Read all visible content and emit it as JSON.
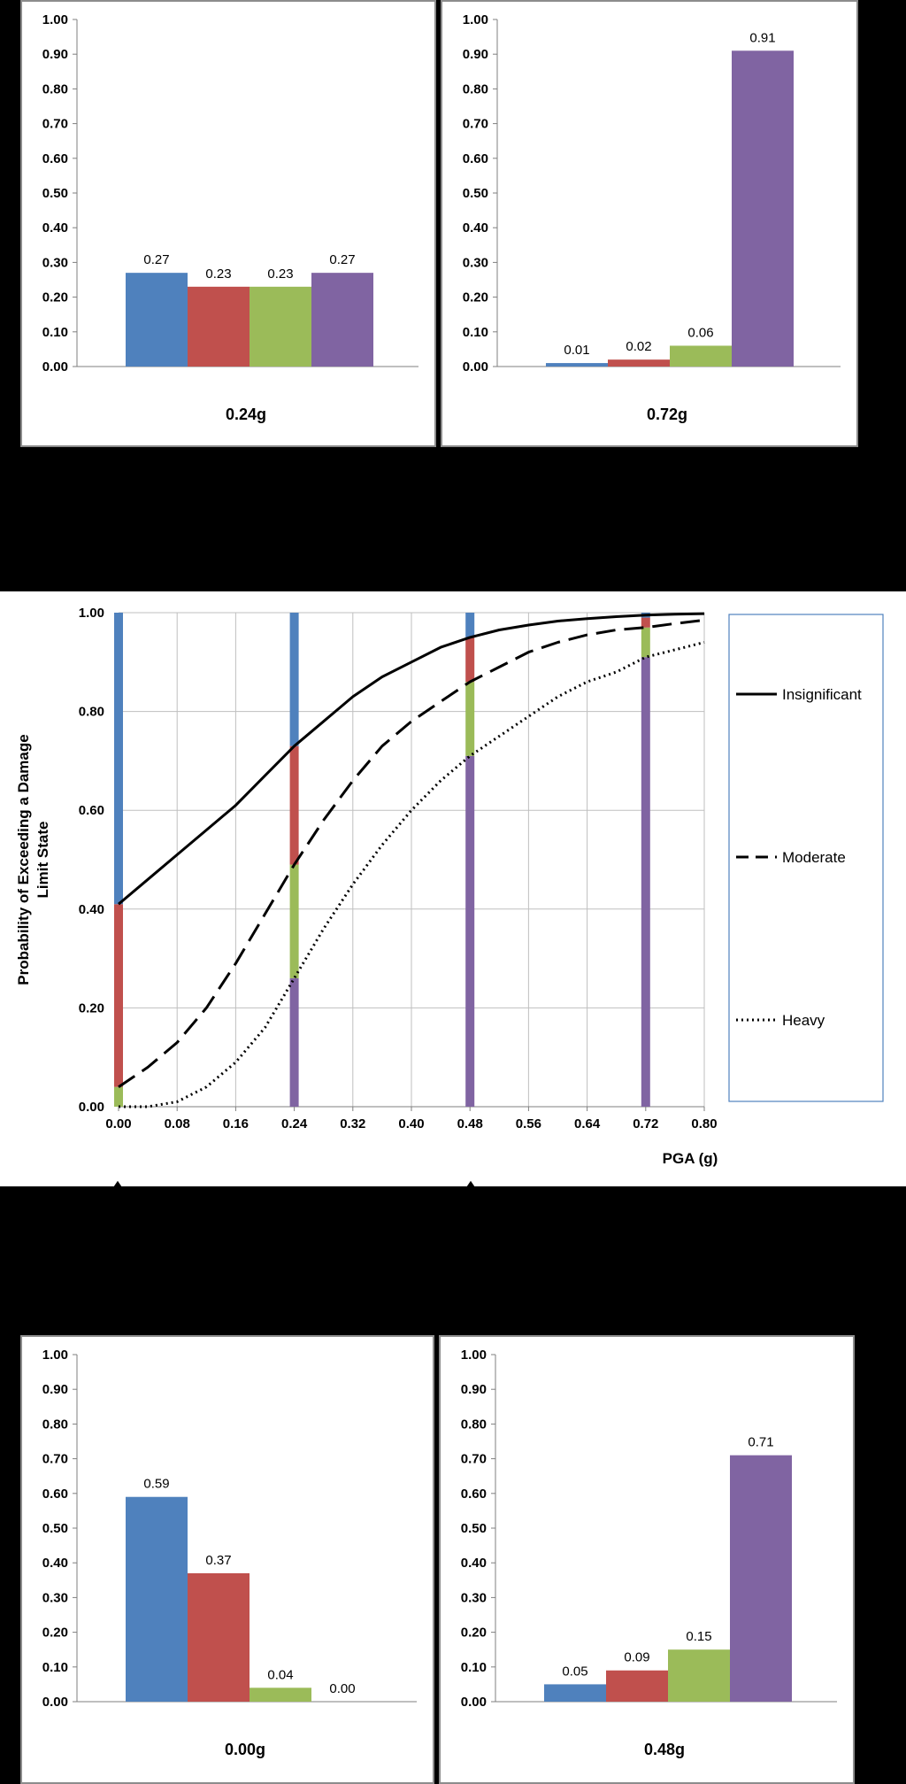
{
  "colors": {
    "blue": "#4f81bd",
    "red": "#c0504d",
    "green": "#9bbb59",
    "purple": "#8064a2",
    "axis": "#7f7f7f",
    "grid": "#bfbfbf"
  },
  "chart_data": [
    {
      "id": "bar_024",
      "type": "bar",
      "title": "",
      "xlabel": "0.24g",
      "ylabel": "",
      "ylim": [
        0,
        1
      ],
      "yticks": [
        "0.00",
        "0.10",
        "0.20",
        "0.30",
        "0.40",
        "0.50",
        "0.60",
        "0.70",
        "0.80",
        "0.90",
        "1.00"
      ],
      "values": [
        0.27,
        0.23,
        0.23,
        0.27
      ],
      "labels": [
        "0.27",
        "0.23",
        "0.23",
        "0.27"
      ],
      "bar_colors": [
        "#4f81bd",
        "#c0504d",
        "#9bbb59",
        "#8064a2"
      ]
    },
    {
      "id": "bar_072",
      "type": "bar",
      "title": "",
      "xlabel": "0.72g",
      "ylabel": "",
      "ylim": [
        0,
        1
      ],
      "yticks": [
        "0.00",
        "0.10",
        "0.20",
        "0.30",
        "0.40",
        "0.50",
        "0.60",
        "0.70",
        "0.80",
        "0.90",
        "1.00"
      ],
      "values": [
        0.01,
        0.02,
        0.06,
        0.91
      ],
      "labels": [
        "0.01",
        "0.02",
        "0.06",
        "0.91"
      ],
      "bar_colors": [
        "#4f81bd",
        "#c0504d",
        "#9bbb59",
        "#8064a2"
      ]
    },
    {
      "id": "main_curve",
      "type": "line",
      "title": "",
      "xlabel": "PGA (g)",
      "ylabel": "Probability of Exceeding a Damage Limit State",
      "ylabel_lines": [
        "Probability of Exceeding a Damage",
        "Limit State"
      ],
      "xlim": [
        0,
        0.8
      ],
      "ylim": [
        0,
        1
      ],
      "xticks": [
        "0.00",
        "0.08",
        "0.16",
        "0.24",
        "0.32",
        "0.40",
        "0.48",
        "0.56",
        "0.64",
        "0.72",
        "0.80"
      ],
      "yticks": [
        "0.00",
        "0.20",
        "0.40",
        "0.60",
        "0.80",
        "1.00"
      ],
      "grid": true,
      "legend_position": "right",
      "series": [
        {
          "name": "Insignificant",
          "style": "solid",
          "x": [
            0,
            0.04,
            0.08,
            0.12,
            0.16,
            0.2,
            0.24,
            0.28,
            0.32,
            0.36,
            0.4,
            0.44,
            0.48,
            0.52,
            0.56,
            0.6,
            0.64,
            0.68,
            0.72,
            0.76,
            0.8
          ],
          "y": [
            0.41,
            0.46,
            0.51,
            0.56,
            0.61,
            0.67,
            0.73,
            0.78,
            0.83,
            0.87,
            0.9,
            0.93,
            0.95,
            0.965,
            0.975,
            0.983,
            0.988,
            0.992,
            0.995,
            0.997,
            0.998
          ]
        },
        {
          "name": "Moderate",
          "style": "dashed",
          "x": [
            0,
            0.04,
            0.08,
            0.12,
            0.16,
            0.2,
            0.24,
            0.28,
            0.32,
            0.36,
            0.4,
            0.44,
            0.48,
            0.52,
            0.56,
            0.6,
            0.64,
            0.68,
            0.72,
            0.76,
            0.8
          ],
          "y": [
            0.04,
            0.08,
            0.13,
            0.2,
            0.29,
            0.39,
            0.49,
            0.58,
            0.66,
            0.73,
            0.78,
            0.82,
            0.86,
            0.89,
            0.92,
            0.94,
            0.955,
            0.965,
            0.97,
            0.978,
            0.985
          ]
        },
        {
          "name": "Heavy",
          "style": "dotted",
          "x": [
            0,
            0.04,
            0.08,
            0.12,
            0.16,
            0.2,
            0.24,
            0.28,
            0.32,
            0.36,
            0.4,
            0.44,
            0.48,
            0.52,
            0.56,
            0.6,
            0.64,
            0.68,
            0.72,
            0.76,
            0.8
          ],
          "y": [
            0.0,
            0.0,
            0.01,
            0.04,
            0.09,
            0.16,
            0.26,
            0.36,
            0.45,
            0.53,
            0.6,
            0.66,
            0.71,
            0.75,
            0.79,
            0.83,
            0.86,
            0.88,
            0.91,
            0.925,
            0.94
          ]
        }
      ],
      "vertical_bands": [
        {
          "x": 0.0,
          "segments": [
            {
              "color": "#9bbb59",
              "from": 0.0,
              "to": 0.04
            },
            {
              "color": "#c0504d",
              "from": 0.04,
              "to": 0.41
            },
            {
              "color": "#4f81bd",
              "from": 0.41,
              "to": 1.0
            }
          ]
        },
        {
          "x": 0.24,
          "segments": [
            {
              "color": "#8064a2",
              "from": 0.0,
              "to": 0.26
            },
            {
              "color": "#9bbb59",
              "from": 0.26,
              "to": 0.49
            },
            {
              "color": "#c0504d",
              "from": 0.49,
              "to": 0.73
            },
            {
              "color": "#4f81bd",
              "from": 0.73,
              "to": 1.0
            }
          ]
        },
        {
          "x": 0.48,
          "segments": [
            {
              "color": "#8064a2",
              "from": 0.0,
              "to": 0.71
            },
            {
              "color": "#9bbb59",
              "from": 0.71,
              "to": 0.86
            },
            {
              "color": "#c0504d",
              "from": 0.86,
              "to": 0.95
            },
            {
              "color": "#4f81bd",
              "from": 0.95,
              "to": 1.0
            }
          ]
        },
        {
          "x": 0.72,
          "segments": [
            {
              "color": "#8064a2",
              "from": 0.0,
              "to": 0.91
            },
            {
              "color": "#9bbb59",
              "from": 0.91,
              "to": 0.97
            },
            {
              "color": "#c0504d",
              "from": 0.97,
              "to": 0.99
            },
            {
              "color": "#4f81bd",
              "from": 0.99,
              "to": 1.0
            }
          ]
        }
      ]
    },
    {
      "id": "bar_000",
      "type": "bar",
      "title": "",
      "xlabel": "0.00g",
      "ylabel": "",
      "ylim": [
        0,
        1
      ],
      "yticks": [
        "0.00",
        "0.10",
        "0.20",
        "0.30",
        "0.40",
        "0.50",
        "0.60",
        "0.70",
        "0.80",
        "0.90",
        "1.00"
      ],
      "values": [
        0.59,
        0.37,
        0.04,
        0.0
      ],
      "labels": [
        "0.59",
        "0.37",
        "0.04",
        "0.00"
      ],
      "bar_colors": [
        "#4f81bd",
        "#c0504d",
        "#9bbb59",
        "#8064a2"
      ]
    },
    {
      "id": "bar_048",
      "type": "bar",
      "title": "",
      "xlabel": "0.48g",
      "ylabel": "",
      "ylim": [
        0,
        1
      ],
      "yticks": [
        "0.00",
        "0.10",
        "0.20",
        "0.30",
        "0.40",
        "0.50",
        "0.60",
        "0.70",
        "0.80",
        "0.90",
        "1.00"
      ],
      "values": [
        0.05,
        0.09,
        0.15,
        0.71
      ],
      "labels": [
        "0.05",
        "0.09",
        "0.15",
        "0.71"
      ],
      "bar_colors": [
        "#4f81bd",
        "#c0504d",
        "#9bbb59",
        "#8064a2"
      ]
    }
  ]
}
